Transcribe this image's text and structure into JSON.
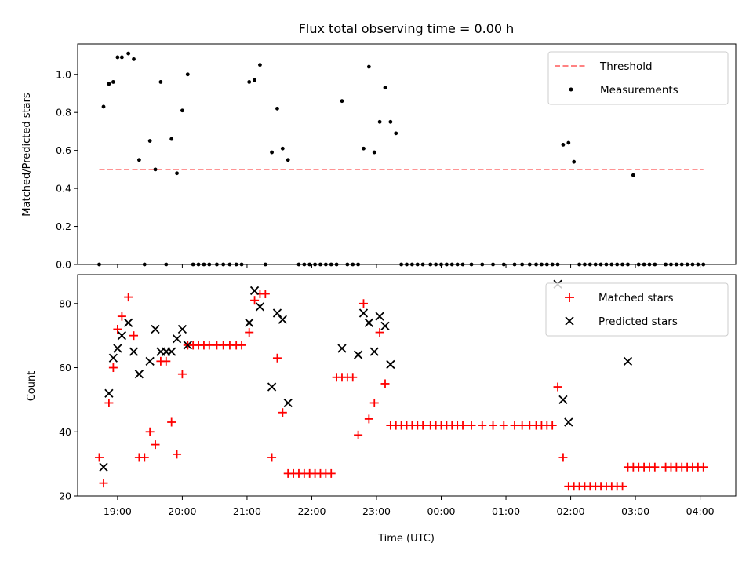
{
  "chart_data": [
    {
      "type": "scatter",
      "title": "Flux total observing time = 0.00 h",
      "ylabel": "Matched/Predicted stars",
      "xlabel": "",
      "xlim": [
        "18:23",
        "04:33"
      ],
      "ylim": [
        0,
        1.16
      ],
      "yticks": [
        "0.0",
        "0.2",
        "0.4",
        "0.6",
        "0.8",
        "1.0"
      ],
      "legend_position": "top-right",
      "series": [
        {
          "name": "Threshold",
          "style": "dashed-line",
          "color": "#ff7070",
          "x": [
            "18:43",
            "04:03"
          ],
          "y": [
            0.5,
            0.5
          ]
        },
        {
          "name": "Measurements",
          "style": "dot",
          "color": "#000000",
          "points": [
            [
              "18:43",
              0
            ],
            [
              "18:47",
              0.83
            ],
            [
              "18:52",
              0.95
            ],
            [
              "18:56",
              0.96
            ],
            [
              "19:00",
              1.09
            ],
            [
              "19:04",
              1.09
            ],
            [
              "19:10",
              1.11
            ],
            [
              "19:15",
              1.08
            ],
            [
              "19:20",
              0.55
            ],
            [
              "19:25",
              0
            ],
            [
              "19:30",
              0.65
            ],
            [
              "19:35",
              0.5
            ],
            [
              "19:40",
              0.96
            ],
            [
              "19:45",
              0
            ],
            [
              "19:50",
              0.66
            ],
            [
              "19:55",
              0.48
            ],
            [
              "20:00",
              0.81
            ],
            [
              "20:05",
              1.0
            ],
            [
              "20:10",
              0
            ],
            [
              "20:15",
              0
            ],
            [
              "20:20",
              0
            ],
            [
              "20:25",
              0
            ],
            [
              "20:32",
              0
            ],
            [
              "20:38",
              0
            ],
            [
              "20:44",
              0
            ],
            [
              "20:50",
              0
            ],
            [
              "20:55",
              0
            ],
            [
              "21:02",
              0.96
            ],
            [
              "21:07",
              0.97
            ],
            [
              "21:12",
              1.05
            ],
            [
              "21:17",
              0
            ],
            [
              "21:23",
              0.59
            ],
            [
              "21:28",
              0.82
            ],
            [
              "21:33",
              0.61
            ],
            [
              "21:38",
              0.55
            ],
            [
              "21:48",
              0
            ],
            [
              "21:53",
              0
            ],
            [
              "21:58",
              0
            ],
            [
              "22:03",
              0
            ],
            [
              "22:08",
              0
            ],
            [
              "22:13",
              0
            ],
            [
              "22:18",
              0
            ],
            [
              "22:23",
              0
            ],
            [
              "22:28",
              0.86
            ],
            [
              "22:33",
              0
            ],
            [
              "22:38",
              0
            ],
            [
              "22:43",
              0
            ],
            [
              "22:48",
              0.61
            ],
            [
              "22:53",
              1.04
            ],
            [
              "22:58",
              0.59
            ],
            [
              "23:03",
              0.75
            ],
            [
              "23:08",
              0.93
            ],
            [
              "23:13",
              0.75
            ],
            [
              "23:18",
              0.69
            ],
            [
              "23:23",
              0
            ],
            [
              "23:28",
              0
            ],
            [
              "23:33",
              0
            ],
            [
              "23:38",
              0
            ],
            [
              "23:43",
              0
            ],
            [
              "23:50",
              0
            ],
            [
              "23:55",
              0
            ],
            [
              "00:00",
              0
            ],
            [
              "00:05",
              0
            ],
            [
              "00:10",
              0
            ],
            [
              "00:15",
              0
            ],
            [
              "00:20",
              0
            ],
            [
              "00:28",
              0
            ],
            [
              "00:38",
              0
            ],
            [
              "00:48",
              0
            ],
            [
              "00:58",
              0
            ],
            [
              "01:08",
              0
            ],
            [
              "01:15",
              0
            ],
            [
              "01:22",
              0
            ],
            [
              "01:28",
              0
            ],
            [
              "01:33",
              0
            ],
            [
              "01:38",
              0
            ],
            [
              "01:43",
              0
            ],
            [
              "01:48",
              0
            ],
            [
              "01:53",
              0.63
            ],
            [
              "01:58",
              0.64
            ],
            [
              "02:03",
              0.54
            ],
            [
              "02:08",
              0
            ],
            [
              "02:13",
              0
            ],
            [
              "02:18",
              0
            ],
            [
              "02:23",
              0
            ],
            [
              "02:28",
              0
            ],
            [
              "02:33",
              0
            ],
            [
              "02:38",
              0
            ],
            [
              "02:43",
              0
            ],
            [
              "02:48",
              0
            ],
            [
              "02:53",
              0
            ],
            [
              "02:58",
              0.47
            ],
            [
              "03:03",
              0
            ],
            [
              "03:08",
              0
            ],
            [
              "03:13",
              0
            ],
            [
              "03:18",
              0
            ],
            [
              "03:28",
              0
            ],
            [
              "03:33",
              0
            ],
            [
              "03:38",
              0
            ],
            [
              "03:43",
              0
            ],
            [
              "03:48",
              0
            ],
            [
              "03:53",
              0
            ],
            [
              "03:58",
              0
            ],
            [
              "04:03",
              0
            ]
          ]
        }
      ]
    },
    {
      "type": "scatter",
      "title": "",
      "xlabel": "Time (UTC)",
      "ylabel": "Count",
      "xlim": [
        "18:23",
        "04:33"
      ],
      "ylim": [
        20,
        89
      ],
      "yticks": [
        "20",
        "40",
        "60",
        "80"
      ],
      "xticks": [
        "19:00",
        "20:00",
        "21:00",
        "22:00",
        "23:00",
        "00:00",
        "01:00",
        "02:00",
        "03:00",
        "04:00"
      ],
      "legend_position": "top-right",
      "series": [
        {
          "name": "Matched stars",
          "style": "plus",
          "color": "#ff0000",
          "points": [
            [
              "18:43",
              32
            ],
            [
              "18:47",
              24
            ],
            [
              "18:52",
              49
            ],
            [
              "18:56",
              60
            ],
            [
              "19:00",
              72
            ],
            [
              "19:04",
              76
            ],
            [
              "19:10",
              82
            ],
            [
              "19:15",
              70
            ],
            [
              "19:20",
              32
            ],
            [
              "19:25",
              32
            ],
            [
              "19:30",
              40
            ],
            [
              "19:35",
              36
            ],
            [
              "19:40",
              62
            ],
            [
              "19:45",
              62
            ],
            [
              "19:50",
              43
            ],
            [
              "19:55",
              33
            ],
            [
              "20:00",
              58
            ],
            [
              "20:05",
              67
            ],
            [
              "20:10",
              67
            ],
            [
              "20:15",
              67
            ],
            [
              "20:20",
              67
            ],
            [
              "20:25",
              67
            ],
            [
              "20:32",
              67
            ],
            [
              "20:38",
              67
            ],
            [
              "20:44",
              67
            ],
            [
              "20:50",
              67
            ],
            [
              "20:55",
              67
            ],
            [
              "21:02",
              71
            ],
            [
              "21:07",
              81
            ],
            [
              "21:12",
              83
            ],
            [
              "21:17",
              83
            ],
            [
              "21:23",
              32
            ],
            [
              "21:28",
              63
            ],
            [
              "21:33",
              46
            ],
            [
              "21:38",
              27
            ],
            [
              "21:43",
              27
            ],
            [
              "21:48",
              27
            ],
            [
              "21:53",
              27
            ],
            [
              "21:58",
              27
            ],
            [
              "22:03",
              27
            ],
            [
              "22:08",
              27
            ],
            [
              "22:13",
              27
            ],
            [
              "22:18",
              27
            ],
            [
              "22:23",
              57
            ],
            [
              "22:28",
              57
            ],
            [
              "22:33",
              57
            ],
            [
              "22:38",
              57
            ],
            [
              "22:43",
              39
            ],
            [
              "22:48",
              80
            ],
            [
              "22:53",
              44
            ],
            [
              "22:58",
              49
            ],
            [
              "23:03",
              71
            ],
            [
              "23:08",
              55
            ],
            [
              "23:13",
              42
            ],
            [
              "23:18",
              42
            ],
            [
              "23:23",
              42
            ],
            [
              "23:28",
              42
            ],
            [
              "23:33",
              42
            ],
            [
              "23:38",
              42
            ],
            [
              "23:43",
              42
            ],
            [
              "23:50",
              42
            ],
            [
              "23:55",
              42
            ],
            [
              "00:00",
              42
            ],
            [
              "00:05",
              42
            ],
            [
              "00:10",
              42
            ],
            [
              "00:15",
              42
            ],
            [
              "00:20",
              42
            ],
            [
              "00:28",
              42
            ],
            [
              "00:38",
              42
            ],
            [
              "00:48",
              42
            ],
            [
              "00:58",
              42
            ],
            [
              "01:08",
              42
            ],
            [
              "01:15",
              42
            ],
            [
              "01:22",
              42
            ],
            [
              "01:28",
              42
            ],
            [
              "01:33",
              42
            ],
            [
              "01:38",
              42
            ],
            [
              "01:43",
              42
            ],
            [
              "01:48",
              54
            ],
            [
              "01:53",
              32
            ],
            [
              "01:58",
              23
            ],
            [
              "02:03",
              23
            ],
            [
              "02:08",
              23
            ],
            [
              "02:13",
              23
            ],
            [
              "02:18",
              23
            ],
            [
              "02:23",
              23
            ],
            [
              "02:28",
              23
            ],
            [
              "02:33",
              23
            ],
            [
              "02:38",
              23
            ],
            [
              "02:43",
              23
            ],
            [
              "02:48",
              23
            ],
            [
              "02:53",
              29
            ],
            [
              "02:58",
              29
            ],
            [
              "03:03",
              29
            ],
            [
              "03:08",
              29
            ],
            [
              "03:13",
              29
            ],
            [
              "03:18",
              29
            ],
            [
              "03:28",
              29
            ],
            [
              "03:33",
              29
            ],
            [
              "03:38",
              29
            ],
            [
              "03:43",
              29
            ],
            [
              "03:48",
              29
            ],
            [
              "03:53",
              29
            ],
            [
              "03:58",
              29
            ],
            [
              "04:03",
              29
            ]
          ]
        },
        {
          "name": "Predicted stars",
          "style": "x",
          "color": "#000000",
          "points": [
            [
              "18:47",
              29
            ],
            [
              "18:52",
              52
            ],
            [
              "18:56",
              63
            ],
            [
              "19:00",
              66
            ],
            [
              "19:04",
              70
            ],
            [
              "19:10",
              74
            ],
            [
              "19:15",
              65
            ],
            [
              "19:20",
              58
            ],
            [
              "19:30",
              62
            ],
            [
              "19:35",
              72
            ],
            [
              "19:40",
              65
            ],
            [
              "19:45",
              65
            ],
            [
              "19:50",
              65
            ],
            [
              "19:55",
              69
            ],
            [
              "20:00",
              72
            ],
            [
              "20:05",
              67
            ],
            [
              "21:02",
              74
            ],
            [
              "21:07",
              84
            ],
            [
              "21:12",
              79
            ],
            [
              "21:23",
              54
            ],
            [
              "21:28",
              77
            ],
            [
              "21:33",
              75
            ],
            [
              "21:38",
              49
            ],
            [
              "22:28",
              66
            ],
            [
              "22:43",
              64
            ],
            [
              "22:48",
              77
            ],
            [
              "22:53",
              74
            ],
            [
              "22:58",
              65
            ],
            [
              "23:03",
              76
            ],
            [
              "23:08",
              73
            ],
            [
              "23:13",
              61
            ],
            [
              "01:48",
              86
            ],
            [
              "01:53",
              50
            ],
            [
              "01:58",
              43
            ],
            [
              "02:53",
              62
            ]
          ]
        }
      ]
    }
  ]
}
